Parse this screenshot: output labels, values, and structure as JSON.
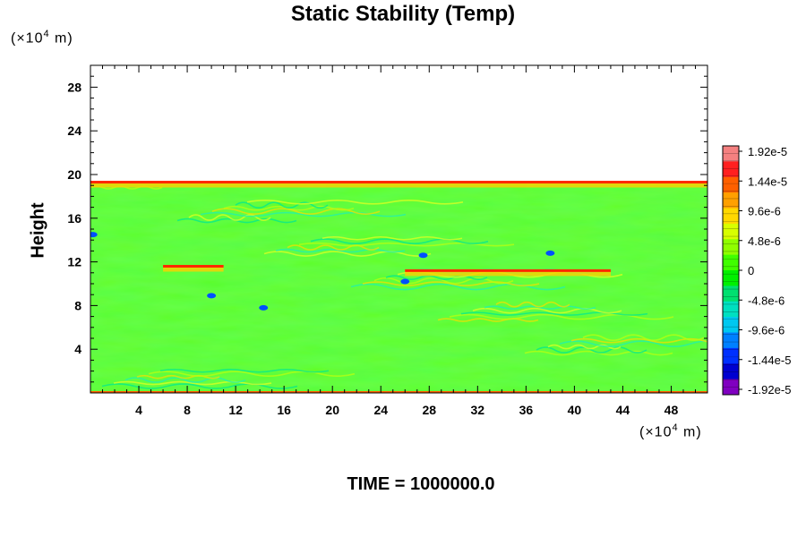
{
  "chart_data": {
    "type": "heatmap",
    "title": "Static Stability (Temp)",
    "ylabel": "Height",
    "xunit": {
      "prefix": "(×10",
      "exp": "4",
      "suffix": " m)"
    },
    "yunit": {
      "prefix": "(×10",
      "exp": "4",
      "suffix": " m)"
    },
    "xlim": [
      0,
      51
    ],
    "ylim": [
      0,
      30
    ],
    "xticks": [
      "4",
      "8",
      "12",
      "16",
      "20",
      "24",
      "28",
      "32",
      "36",
      "40",
      "44",
      "48"
    ],
    "yticks": [
      "4",
      "8",
      "12",
      "16",
      "20",
      "24",
      "28"
    ],
    "colorbar": {
      "labels": [
        "1.92e-5",
        "1.44e-5",
        "9.6e-6",
        "4.8e-6",
        "0",
        "-4.8e-6",
        "-9.6e-6",
        "-1.44e-5",
        "-1.92e-5"
      ],
      "range": [
        -1.92e-05,
        1.92e-05
      ],
      "colors": [
        "#f48080",
        "#ff2020",
        "#ff6000",
        "#ffa000",
        "#ffd800",
        "#d8ff00",
        "#90ff00",
        "#40ff00",
        "#00f000",
        "#00e070",
        "#00e0c0",
        "#00c8f0",
        "#0080ff",
        "#0030ff",
        "#0000d0",
        "#8000c0"
      ]
    },
    "field": {
      "top_height": 19.3,
      "background": "#33ff22",
      "stable_bands": [
        {
          "x": [
            0,
            51
          ],
          "y": 19.3
        },
        {
          "x": [
            6,
            11
          ],
          "y": 11.6
        },
        {
          "x": [
            26,
            43
          ],
          "y": 11.2
        }
      ]
    },
    "time_label": "TIME = 1000000.0"
  }
}
